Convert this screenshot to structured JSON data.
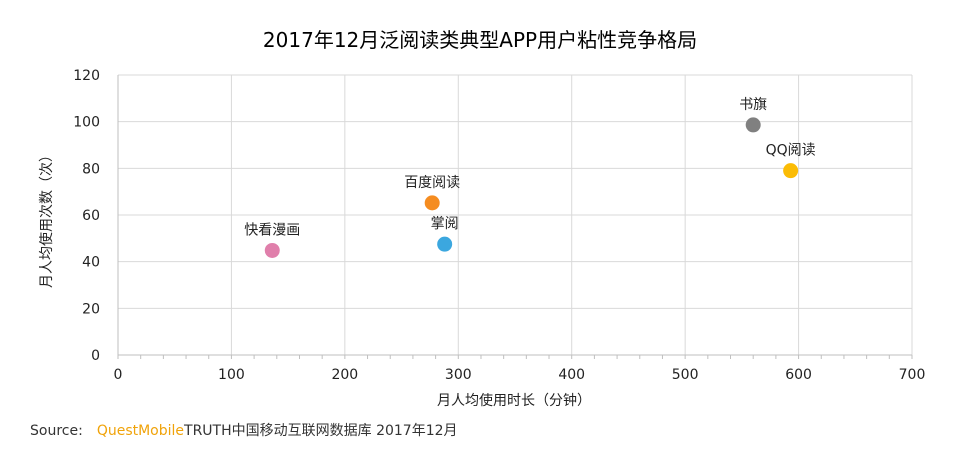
{
  "chart_data": {
    "type": "scatter",
    "title": "2017年12月泛阅读类典型APP用户粘性竞争格局",
    "xlabel": "月人均使用时长（分钟）",
    "ylabel": "月人均使用次数（次）",
    "xlim": [
      0,
      700
    ],
    "ylim": [
      0,
      120
    ],
    "x_ticks": [
      "0",
      "100",
      "200",
      "300",
      "400",
      "500",
      "600",
      "700"
    ],
    "y_ticks": [
      "0",
      "20",
      "40",
      "60",
      "80",
      "100",
      "120"
    ],
    "grid": true,
    "points": [
      {
        "name": "快看漫画",
        "x": 136,
        "y": 44.8,
        "color": "#e07fab"
      },
      {
        "name": "百度阅读",
        "x": 277,
        "y": 65.2,
        "color": "#f58c20"
      },
      {
        "name": "掌阅",
        "x": 288,
        "y": 47.5,
        "color": "#3ba7df"
      },
      {
        "name": "书旗",
        "x": 560,
        "y": 98.6,
        "color": "#808080"
      },
      {
        "name": "QQ阅读",
        "x": 593,
        "y": 79.0,
        "color": "#fbbc05"
      }
    ]
  },
  "source": {
    "label": "Source:",
    "brand": "QuestMobile",
    "text": "TRUTH中国移动互联网数据库 2017年12月"
  }
}
